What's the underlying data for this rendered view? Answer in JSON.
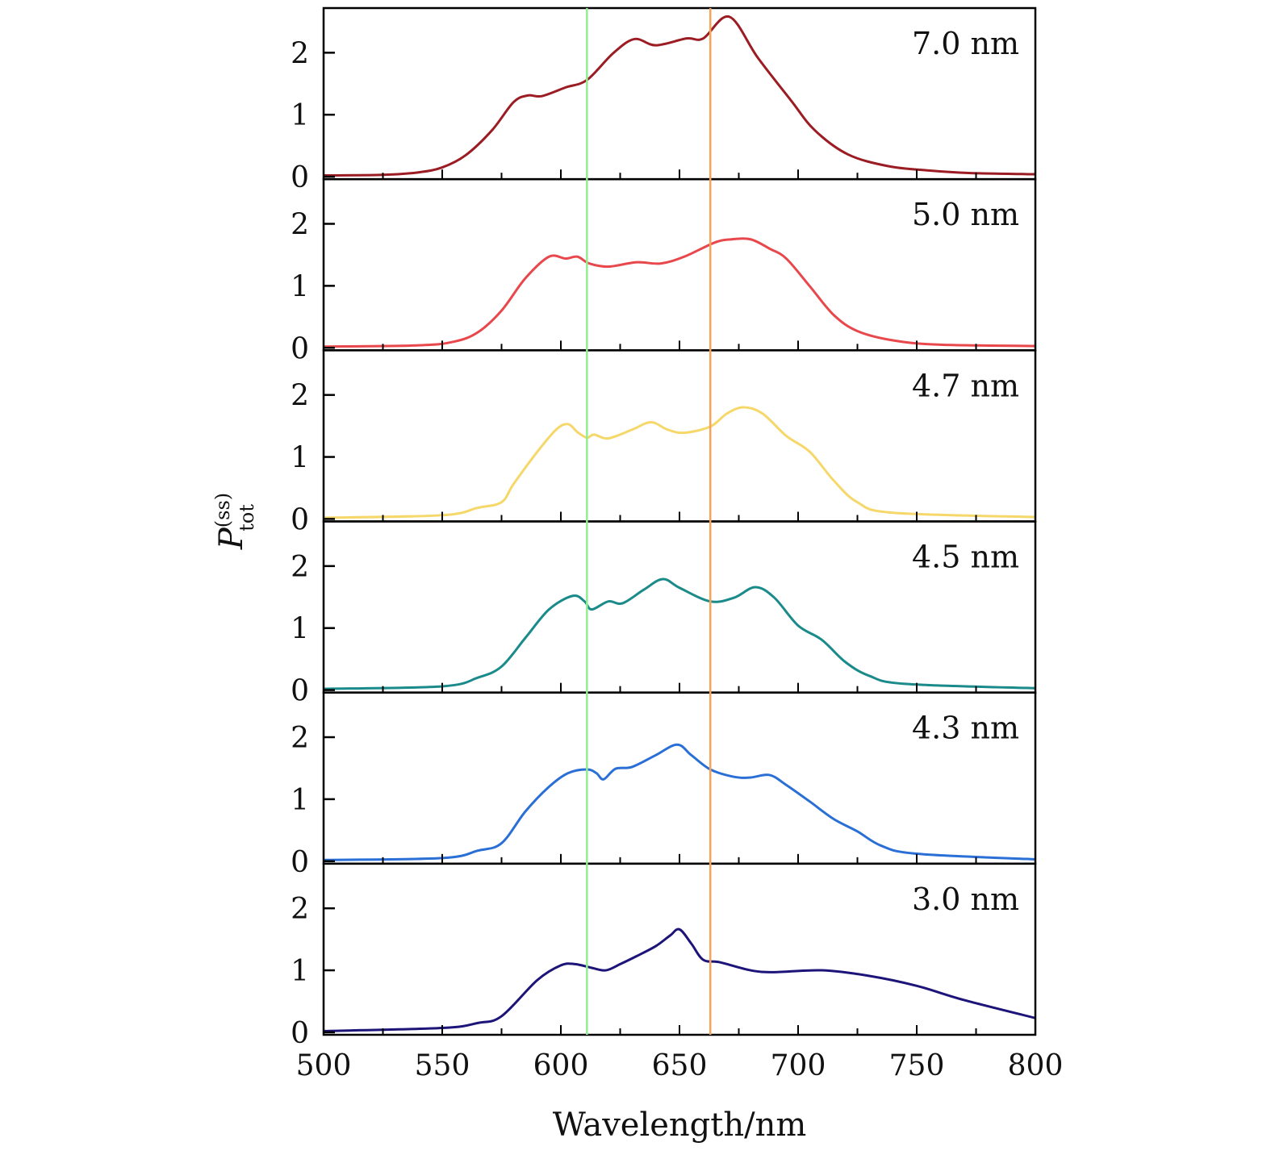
{
  "chart_data": {
    "type": "line",
    "xlabel": "Wavelength/nm",
    "ylabel": {
      "base": "P",
      "superscript": "(ss)",
      "subscript": "tot"
    },
    "xlim": [
      500,
      800
    ],
    "ylim": [
      -0.04,
      2.72
    ],
    "xticks": [
      500,
      550,
      600,
      650,
      700,
      750,
      800
    ],
    "xminor_step": 25,
    "yticks": [
      0,
      1,
      2
    ],
    "vertical_lines": [
      {
        "x": 611,
        "color": "#90ee90"
      },
      {
        "x": 663,
        "color": "#f5a55a"
      }
    ],
    "panels": [
      {
        "label": "7.0 nm",
        "color": "#9b1c23",
        "x": [
          500,
          525,
          540,
          550,
          560,
          571,
          580,
          586,
          592,
          602,
          611,
          622,
          631,
          640,
          653,
          660,
          671,
          683,
          697,
          707,
          721,
          738,
          755,
          772,
          800
        ],
        "y": [
          0.02,
          0.03,
          0.07,
          0.15,
          0.35,
          0.75,
          1.2,
          1.31,
          1.3,
          1.44,
          1.56,
          1.99,
          2.22,
          2.12,
          2.23,
          2.23,
          2.58,
          1.92,
          1.23,
          0.75,
          0.36,
          0.17,
          0.1,
          0.06,
          0.04
        ]
      },
      {
        "label": "5.0 nm",
        "color": "#e8474c",
        "x": [
          500,
          540,
          555,
          565,
          575,
          585,
          595,
          602,
          607,
          612,
          620,
          632,
          642,
          652,
          665,
          672,
          680,
          688,
          695,
          705,
          715,
          725,
          740,
          760,
          800
        ],
        "y": [
          0.02,
          0.04,
          0.1,
          0.25,
          0.6,
          1.12,
          1.47,
          1.44,
          1.47,
          1.36,
          1.31,
          1.38,
          1.36,
          1.47,
          1.7,
          1.75,
          1.75,
          1.6,
          1.44,
          0.99,
          0.53,
          0.27,
          0.12,
          0.05,
          0.03
        ]
      },
      {
        "label": "4.7 nm",
        "color": "#f5d76a",
        "x": [
          500,
          550,
          565,
          575,
          580,
          590,
          598,
          603,
          607,
          611,
          614,
          620,
          630,
          638,
          645,
          652,
          663,
          670,
          677,
          685,
          695,
          705,
          715,
          725,
          740,
          800
        ],
        "y": [
          0.02,
          0.06,
          0.18,
          0.27,
          0.56,
          1.08,
          1.44,
          1.53,
          1.4,
          1.31,
          1.36,
          1.3,
          1.44,
          1.56,
          1.44,
          1.39,
          1.49,
          1.7,
          1.8,
          1.7,
          1.34,
          1.08,
          0.62,
          0.27,
          0.1,
          0.03
        ]
      },
      {
        "label": "4.5 nm",
        "color": "#1a8a8a",
        "x": [
          500,
          550,
          565,
          575,
          585,
          595,
          605,
          610,
          613,
          620,
          626,
          635,
          643,
          650,
          663,
          673,
          682,
          690,
          700,
          710,
          720,
          730,
          745,
          800
        ],
        "y": [
          0.02,
          0.06,
          0.2,
          0.38,
          0.84,
          1.3,
          1.52,
          1.43,
          1.3,
          1.43,
          1.4,
          1.62,
          1.79,
          1.65,
          1.43,
          1.49,
          1.66,
          1.49,
          1.04,
          0.81,
          0.45,
          0.23,
          0.1,
          0.03
        ]
      },
      {
        "label": "4.3 nm",
        "color": "#2a6fd6",
        "x": [
          500,
          550,
          565,
          575,
          585,
          595,
          603,
          611,
          615,
          618,
          623,
          630,
          640,
          649,
          655,
          663,
          673,
          680,
          688,
          695,
          705,
          715,
          725,
          735,
          750,
          800
        ],
        "y": [
          0.02,
          0.05,
          0.17,
          0.29,
          0.8,
          1.2,
          1.42,
          1.48,
          1.42,
          1.32,
          1.49,
          1.52,
          1.71,
          1.88,
          1.71,
          1.48,
          1.36,
          1.35,
          1.39,
          1.23,
          0.96,
          0.68,
          0.48,
          0.25,
          0.12,
          0.03
        ]
      },
      {
        "label": "3.0 nm",
        "color": "#1c1478",
        "x": [
          500,
          550,
          565,
          575,
          590,
          600,
          606,
          613,
          619,
          625,
          632,
          640,
          646,
          650,
          655,
          660,
          667,
          680,
          690,
          710,
          730,
          750,
          770,
          800
        ],
        "y": [
          0.02,
          0.07,
          0.15,
          0.26,
          0.84,
          1.08,
          1.1,
          1.04,
          1.0,
          1.1,
          1.23,
          1.39,
          1.56,
          1.66,
          1.43,
          1.17,
          1.13,
          1.0,
          0.97,
          1.0,
          0.91,
          0.75,
          0.52,
          0.23
        ]
      }
    ]
  }
}
